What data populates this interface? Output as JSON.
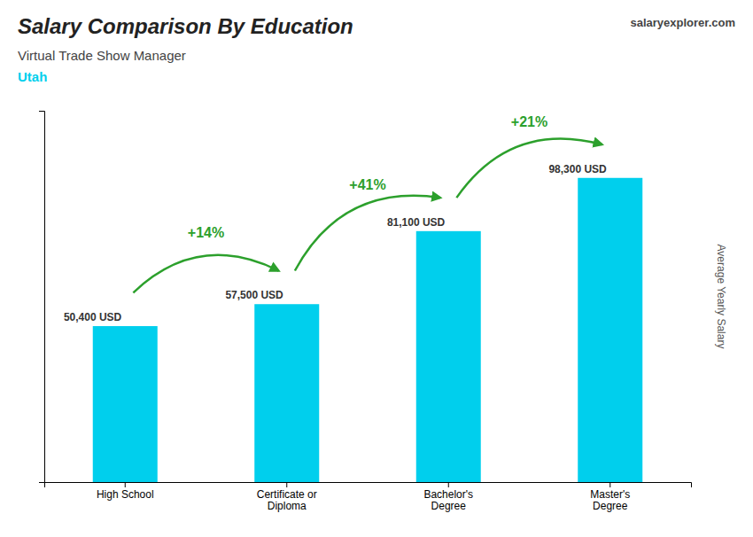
{
  "chart_data": {
    "type": "bar",
    "title": "Salary Comparison By Education",
    "subtitle": "Virtual Trade Show Manager",
    "annotations": [
      "Utah",
      "salaryexplorer.com"
    ],
    "ylabel": "Average Yearly Salary",
    "categories": [
      "High School",
      "Certificate or\nDiploma",
      "Bachelor's\nDegree",
      "Master's\nDegree"
    ],
    "values": [
      50400,
      57500,
      81100,
      98300
    ],
    "value_labels": [
      "50,400 USD",
      "57,500 USD",
      "81,100 USD",
      "98,300 USD"
    ],
    "data_labels": true,
    "pct_changes": [
      "+14%",
      "+41%",
      "+21%"
    ],
    "color": "#00cfed",
    "ylim": [
      0,
      120000
    ],
    "yticks": [],
    "tick_labels": "x",
    "grid": false
  }
}
